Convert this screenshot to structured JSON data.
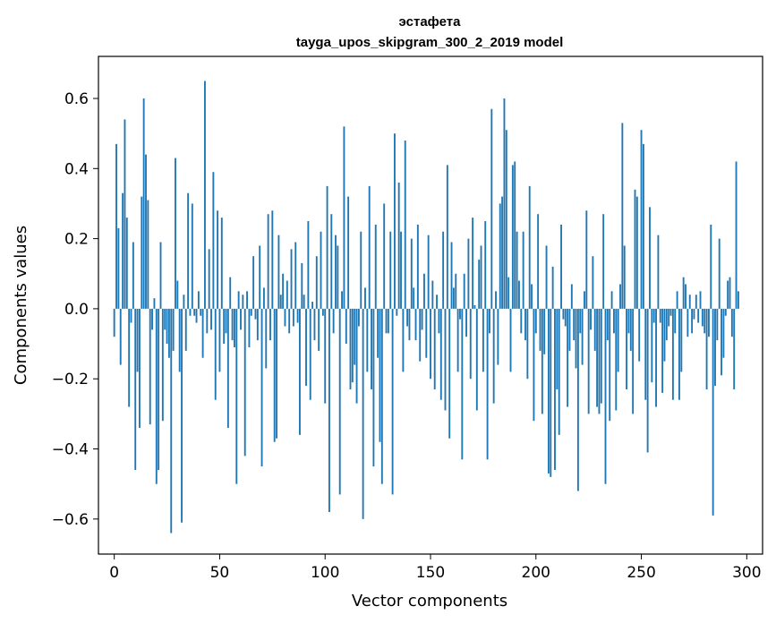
{
  "chart_data": {
    "type": "bar",
    "title": "эстафета",
    "subtitle": "tayga_upos_skipgram_300_2_2019 model",
    "xlabel": "Vector components",
    "ylabel": "Components values",
    "xlim": [
      -7.5,
      307.5
    ],
    "ylim": [
      -0.7,
      0.72
    ],
    "xticks": [
      0,
      50,
      100,
      150,
      200,
      250,
      300
    ],
    "xtick_labels": [
      "0",
      "50",
      "100",
      "150",
      "200",
      "250",
      "300"
    ],
    "yticks": [
      -0.6,
      -0.4,
      -0.2,
      0.0,
      0.2,
      0.4,
      0.6
    ],
    "ytick_labels": [
      "−0.6",
      "−0.4",
      "−0.2",
      "0.0",
      "0.2",
      "0.4",
      "0.6"
    ],
    "grid": false,
    "bar_color": "#1f77b4",
    "values": [
      -0.08,
      0.47,
      0.23,
      -0.16,
      0.33,
      0.54,
      0.26,
      -0.28,
      -0.04,
      0.19,
      -0.46,
      -0.18,
      -0.34,
      0.32,
      0.6,
      0.44,
      0.31,
      -0.33,
      -0.06,
      0.03,
      -0.5,
      -0.46,
      0.19,
      -0.32,
      -0.06,
      -0.1,
      -0.14,
      -0.64,
      -0.12,
      0.43,
      0.08,
      -0.18,
      -0.61,
      0.04,
      -0.12,
      0.33,
      -0.02,
      0.3,
      -0.02,
      -0.04,
      0.05,
      -0.02,
      -0.14,
      0.65,
      -0.07,
      0.17,
      -0.06,
      0.39,
      -0.26,
      0.28,
      -0.18,
      0.26,
      -0.1,
      -0.07,
      -0.34,
      0.09,
      -0.09,
      -0.11,
      -0.5,
      0.05,
      -0.06,
      0.04,
      -0.42,
      0.05,
      -0.11,
      -0.02,
      0.15,
      -0.03,
      -0.09,
      0.18,
      -0.45,
      0.06,
      -0.17,
      0.27,
      -0.09,
      0.28,
      -0.38,
      -0.37,
      0.21,
      0.04,
      0.1,
      -0.05,
      0.08,
      -0.07,
      0.17,
      -0.05,
      0.19,
      -0.04,
      -0.36,
      0.13,
      0.04,
      -0.22,
      0.25,
      -0.26,
      0.02,
      -0.09,
      0.15,
      -0.12,
      0.22,
      -0.02,
      -0.27,
      0.35,
      -0.58,
      0.27,
      -0.07,
      0.21,
      0.18,
      -0.53,
      0.05,
      0.52,
      -0.1,
      0.32,
      -0.23,
      -0.21,
      -0.16,
      -0.27,
      -0.05,
      0.22,
      -0.6,
      0.06,
      -0.18,
      0.35,
      -0.23,
      -0.45,
      0.24,
      -0.14,
      -0.38,
      -0.5,
      0.3,
      -0.07,
      -0.07,
      0.22,
      -0.53,
      0.5,
      -0.02,
      0.36,
      0.22,
      -0.18,
      0.48,
      -0.05,
      -0.09,
      0.2,
      0.06,
      -0.09,
      0.24,
      -0.15,
      -0.06,
      0.1,
      -0.14,
      0.21,
      -0.2,
      0.08,
      -0.23,
      0.04,
      -0.07,
      -0.26,
      0.22,
      -0.29,
      0.41,
      -0.37,
      0.19,
      0.06,
      0.1,
      -0.18,
      -0.03,
      -0.43,
      0.1,
      -0.08,
      0.2,
      -0.2,
      0.26,
      0.01,
      -0.29,
      0.14,
      0.18,
      -0.18,
      0.25,
      -0.43,
      -0.07,
      0.57,
      -0.27,
      0.05,
      -0.16,
      0.3,
      0.32,
      0.6,
      0.51,
      0.09,
      -0.18,
      0.41,
      0.42,
      0.22,
      0.08,
      -0.07,
      0.22,
      -0.09,
      -0.2,
      0.35,
      0.07,
      -0.32,
      -0.07,
      0.27,
      -0.12,
      -0.3,
      -0.13,
      0.18,
      -0.47,
      -0.48,
      0.12,
      -0.46,
      -0.23,
      -0.36,
      0.24,
      -0.03,
      -0.05,
      -0.28,
      -0.12,
      0.07,
      -0.09,
      -0.17,
      -0.52,
      -0.07,
      -0.16,
      0.05,
      0.28,
      -0.3,
      -0.06,
      0.15,
      -0.12,
      -0.28,
      -0.3,
      -0.27,
      0.27,
      -0.5,
      -0.09,
      -0.32,
      0.05,
      -0.07,
      -0.29,
      -0.18,
      0.07,
      0.53,
      0.18,
      -0.23,
      -0.07,
      -0.12,
      -0.3,
      0.34,
      0.32,
      -0.15,
      0.51,
      0.47,
      -0.26,
      -0.41,
      0.29,
      -0.21,
      -0.04,
      -0.28,
      0.21,
      -0.04,
      -0.24,
      -0.15,
      -0.09,
      -0.05,
      -0.02,
      -0.26,
      -0.07,
      0.05,
      -0.26,
      -0.18,
      0.09,
      0.07,
      -0.08,
      0.04,
      -0.07,
      -0.03,
      0.04,
      -0.04,
      0.05,
      -0.05,
      -0.07,
      -0.23,
      -0.08,
      0.24,
      -0.59,
      -0.22,
      -0.09,
      0.2,
      -0.19,
      -0.14,
      -0.02,
      0.08,
      0.09,
      -0.08,
      -0.23,
      0.42,
      0.05
    ]
  }
}
